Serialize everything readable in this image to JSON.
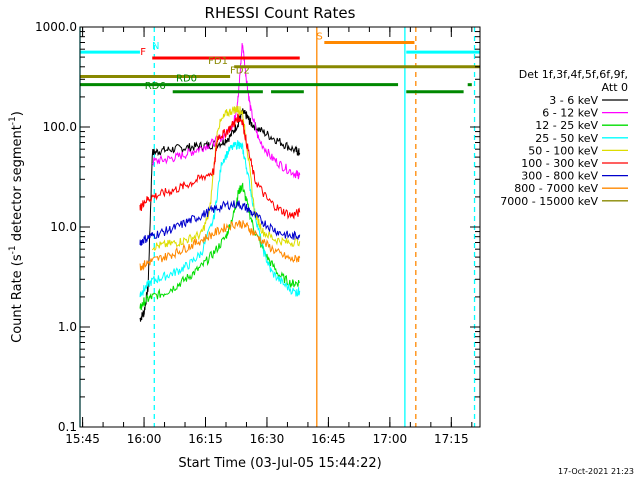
{
  "chart_data": {
    "type": "line",
    "title": "RHESSI Count Rates",
    "xlabel": "Start Time (03-Jul-05 15:44:22)",
    "ylabel_main": "Count Rate (s",
    "ylabel_sup1": "-1",
    "ylabel_mid": " detector segment",
    "ylabel_sup2": "-1",
    "ylabel_end": ")",
    "y_scale": "log",
    "ylim": [
      0.1,
      1000
    ],
    "xlim": [
      "15:44:22",
      "17:22:00"
    ],
    "x_ticks": [
      "15:45",
      "16:00",
      "16:15",
      "16:30",
      "16:45",
      "17:00",
      "17:15"
    ],
    "y_ticks": [
      "0.1",
      "1.0",
      "10.0",
      "100.0",
      "1000.0"
    ],
    "legend_header": [
      "Det 1f,3f,4f,5f,6f,9f,",
      "Att 0"
    ],
    "timestamp": "17-Oct-2021 21:23",
    "series": [
      {
        "name": "3 - 6 keV",
        "color": "#000000",
        "points": [
          [
            "15:59",
            1.2
          ],
          [
            "16:00",
            1.4
          ],
          [
            "16:01",
            2.5
          ],
          [
            "16:02",
            55
          ],
          [
            "16:04",
            58
          ],
          [
            "16:07",
            60
          ],
          [
            "16:10",
            62
          ],
          [
            "16:13",
            64
          ],
          [
            "16:16",
            66
          ],
          [
            "16:19",
            70
          ],
          [
            "16:21",
            80
          ],
          [
            "16:23",
            110
          ],
          [
            "16:24",
            140
          ],
          [
            "16:25",
            130
          ],
          [
            "16:26",
            110
          ],
          [
            "16:28",
            95
          ],
          [
            "16:31",
            80
          ],
          [
            "16:34",
            68
          ],
          [
            "16:37",
            58
          ],
          [
            "16:38",
            55
          ]
        ]
      },
      {
        "name": "6 - 12 keV",
        "color": "#ff00ff",
        "points": [
          [
            "16:02",
            45
          ],
          [
            "16:05",
            47
          ],
          [
            "16:08",
            50
          ],
          [
            "16:11",
            55
          ],
          [
            "16:14",
            62
          ],
          [
            "16:17",
            70
          ],
          [
            "16:20",
            85
          ],
          [
            "16:22",
            115
          ],
          [
            "16:23",
            200
          ],
          [
            "16:24",
            700
          ],
          [
            "16:25",
            300
          ],
          [
            "16:26",
            150
          ],
          [
            "16:28",
            75
          ],
          [
            "16:31",
            50
          ],
          [
            "16:34",
            40
          ],
          [
            "16:37",
            34
          ],
          [
            "16:38",
            33
          ]
        ]
      },
      {
        "name": "12 - 25 keV",
        "color": "#00dd00",
        "points": [
          [
            "15:59",
            1.5
          ],
          [
            "16:00",
            1.8
          ],
          [
            "16:02",
            2.0
          ],
          [
            "16:05",
            2.2
          ],
          [
            "16:08",
            2.6
          ],
          [
            "16:11",
            3.2
          ],
          [
            "16:14",
            4.0
          ],
          [
            "16:17",
            5.5
          ],
          [
            "16:20",
            8.0
          ],
          [
            "16:22",
            14
          ],
          [
            "16:23",
            22
          ],
          [
            "16:24",
            26
          ],
          [
            "16:25",
            18
          ],
          [
            "16:27",
            9
          ],
          [
            "16:30",
            5
          ],
          [
            "16:33",
            3.3
          ],
          [
            "16:36",
            2.7
          ],
          [
            "16:38",
            2.8
          ]
        ]
      },
      {
        "name": "25 - 50 keV",
        "color": "#00ffff",
        "points": [
          [
            "15:59",
            2.1
          ],
          [
            "16:00",
            2.4
          ],
          [
            "16:02",
            2.9
          ],
          [
            "16:05",
            3.2
          ],
          [
            "16:08",
            3.6
          ],
          [
            "16:11",
            4.2
          ],
          [
            "16:14",
            5.5
          ],
          [
            "16:17",
            12
          ],
          [
            "16:19",
            45
          ],
          [
            "16:21",
            60
          ],
          [
            "16:23",
            68
          ],
          [
            "16:24",
            62
          ],
          [
            "16:25",
            40
          ],
          [
            "16:27",
            14
          ],
          [
            "16:29",
            6
          ],
          [
            "16:31",
            3.6
          ],
          [
            "16:34",
            2.7
          ],
          [
            "16:37",
            2.2
          ],
          [
            "16:38",
            2.3
          ]
        ]
      },
      {
        "name": "50 - 100 keV",
        "color": "#dddd00",
        "points": [
          [
            "16:02",
            6.4
          ],
          [
            "16:05",
            6.6
          ],
          [
            "16:08",
            7.0
          ],
          [
            "16:11",
            7.6
          ],
          [
            "16:14",
            8.5
          ],
          [
            "16:16",
            14
          ],
          [
            "16:18",
            100
          ],
          [
            "16:20",
            135
          ],
          [
            "16:22",
            150
          ],
          [
            "16:23",
            150
          ],
          [
            "16:24",
            140
          ],
          [
            "16:25",
            70
          ],
          [
            "16:27",
            14
          ],
          [
            "16:29",
            9
          ],
          [
            "16:32",
            7.5
          ],
          [
            "16:35",
            7
          ],
          [
            "16:38",
            7.2
          ]
        ]
      },
      {
        "name": "100 - 300 keV",
        "color": "#ff0000",
        "points": [
          [
            "15:59",
            15
          ],
          [
            "16:00",
            18
          ],
          [
            "16:02",
            20
          ],
          [
            "16:05",
            22
          ],
          [
            "16:08",
            24
          ],
          [
            "16:11",
            27
          ],
          [
            "16:14",
            31
          ],
          [
            "16:17",
            36
          ],
          [
            "16:18",
            80
          ],
          [
            "16:20",
            88
          ],
          [
            "16:22",
            110
          ],
          [
            "16:23",
            125
          ],
          [
            "16:24",
            115
          ],
          [
            "16:25",
            70
          ],
          [
            "16:27",
            30
          ],
          [
            "16:30",
            19
          ],
          [
            "16:33",
            15
          ],
          [
            "16:36",
            13
          ],
          [
            "16:38",
            14
          ]
        ]
      },
      {
        "name": "300 - 800 keV",
        "color": "#0000cc",
        "points": [
          [
            "15:59",
            7.0
          ],
          [
            "16:00",
            7.5
          ],
          [
            "16:02",
            8.2
          ],
          [
            "16:05",
            9
          ],
          [
            "16:08",
            10
          ],
          [
            "16:11",
            11.5
          ],
          [
            "16:14",
            13
          ],
          [
            "16:17",
            15
          ],
          [
            "16:20",
            16.5
          ],
          [
            "16:23",
            17
          ],
          [
            "16:25",
            15.5
          ],
          [
            "16:27",
            13
          ],
          [
            "16:30",
            10.5
          ],
          [
            "16:33",
            8.8
          ],
          [
            "16:36",
            8.0
          ],
          [
            "16:38",
            8.4
          ]
        ]
      },
      {
        "name": "800 - 7000 keV",
        "color": "#ff8800",
        "points": [
          [
            "15:59",
            4.0
          ],
          [
            "16:00",
            4.2
          ],
          [
            "16:02",
            4.6
          ],
          [
            "16:05",
            5
          ],
          [
            "16:08",
            5.6
          ],
          [
            "16:11",
            6.4
          ],
          [
            "16:14",
            7.4
          ],
          [
            "16:17",
            8.6
          ],
          [
            "16:20",
            10
          ],
          [
            "16:23",
            11
          ],
          [
            "16:25",
            10.2
          ],
          [
            "16:27",
            8.6
          ],
          [
            "16:30",
            6.6
          ],
          [
            "16:33",
            5.4
          ],
          [
            "16:36",
            4.7
          ],
          [
            "16:38",
            4.9
          ]
        ]
      },
      {
        "name": "7000 - 15000 keV",
        "color": "#888800",
        "points": []
      }
    ],
    "flags": [
      {
        "label": "N",
        "color": "#00ffff",
        "segments": [
          [
            "15:44:22",
            "15:59:00"
          ],
          [
            "17:04:00",
            "17:22:00"
          ]
        ],
        "level": 560
      },
      {
        "label": "S",
        "color": "#ff8800",
        "segments": [
          [
            "16:44:00",
            "17:06:00"
          ]
        ],
        "level": 700
      },
      {
        "label": "F",
        "color": "#ff0000",
        "segments": [
          [
            "16:02:00",
            "16:38:00"
          ]
        ],
        "level": 490
      },
      {
        "label": "FD1",
        "color": "#888800",
        "segments": [
          [
            "16:22:00",
            "17:22:00"
          ]
        ],
        "level": 400
      },
      {
        "label": "FD2",
        "color": "#888800",
        "segments": [
          [
            "15:44:22",
            "16:21:00"
          ]
        ],
        "level": 320
      },
      {
        "label": "RD0",
        "color": "#008800",
        "segments": [
          [
            "15:44:22",
            "17:02:00"
          ],
          [
            "17:19:00",
            "17:20:00"
          ]
        ],
        "level": 265
      },
      {
        "label": "RD6",
        "color": "#008800",
        "segments": [
          [
            "16:07:00",
            "16:29:00"
          ],
          [
            "16:31:00",
            "16:39:00"
          ],
          [
            "17:04:00",
            "17:18:00"
          ]
        ],
        "level": 225
      }
    ],
    "vlines": [
      {
        "t": "15:44:22",
        "color": "#00ffff",
        "style": "solid"
      },
      {
        "t": "16:02:30",
        "color": "#00ffff",
        "style": "dash"
      },
      {
        "t": "16:42:10",
        "color": "#ff8800",
        "style": "solid"
      },
      {
        "t": "17:03:40",
        "color": "#00ffff",
        "style": "solid"
      },
      {
        "t": "17:06:20",
        "color": "#ff8800",
        "style": "dash"
      },
      {
        "t": "17:20:40",
        "color": "#00ffff",
        "style": "dash"
      }
    ]
  }
}
